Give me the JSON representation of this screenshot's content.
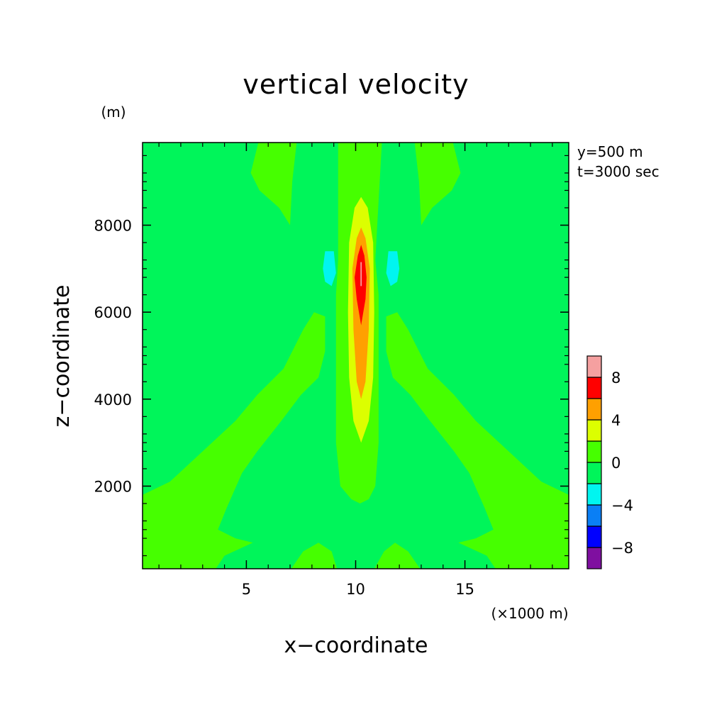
{
  "chart_data": {
    "type": "heatmap",
    "title": "vertical velocity",
    "xlabel": "x−coordinate",
    "ylabel": "z−coordinate",
    "x_unit": "(×1000 m)",
    "y_unit": "(m)",
    "annotations": [
      "y=500 m",
      "t=3000 sec"
    ],
    "xlim": [
      0.25,
      19.75
    ],
    "ylim": [
      100,
      9900
    ],
    "x_ticks": [
      5,
      10,
      15
    ],
    "x_tick_labels": [
      "5",
      "10",
      "15"
    ],
    "y_ticks": [
      2000,
      4000,
      6000,
      8000
    ],
    "y_tick_labels": [
      "2000",
      "4000",
      "6000",
      "8000"
    ],
    "colorbar": {
      "levels": [
        -10,
        -8,
        -6,
        -4,
        -2,
        0,
        2,
        4,
        6,
        8,
        10
      ],
      "tick_values": [
        -8,
        -4,
        0,
        4,
        8
      ],
      "tick_labels": [
        "−8",
        "−4",
        "0",
        "4",
        "8"
      ],
      "colors": [
        "#7f0fa0",
        "#0000ff",
        "#0a7ff5",
        "#00f5f0",
        "#00f55a",
        "#46ff00",
        "#dcff00",
        "#ffa000",
        "#ff0000",
        "#f5a0a0"
      ]
    },
    "background_color": "#00f55a",
    "regions": [
      {
        "value_range": [
          0,
          2
        ],
        "color": "#46ff00",
        "points": [
          [
            0.25,
            1800
          ],
          [
            1.5,
            2100
          ],
          [
            3,
            2800
          ],
          [
            4.5,
            3500
          ],
          [
            5.5,
            4100
          ],
          [
            6.7,
            4700
          ],
          [
            7.6,
            5600
          ],
          [
            8.1,
            6000
          ],
          [
            8.6,
            5900
          ],
          [
            8.6,
            5100
          ],
          [
            8.3,
            4500
          ],
          [
            7.5,
            4100
          ],
          [
            6.6,
            3500
          ],
          [
            5.5,
            2800
          ],
          [
            4.8,
            2300
          ],
          [
            4.1,
            1500
          ],
          [
            3.7,
            1000
          ],
          [
            4.5,
            800
          ],
          [
            5.3,
            700
          ],
          [
            4,
            400
          ],
          [
            3.6,
            100
          ],
          [
            0.25,
            100
          ]
        ]
      },
      {
        "value_range": [
          0,
          2
        ],
        "color": "#46ff00",
        "points": [
          [
            19.75,
            1800
          ],
          [
            18.5,
            2100
          ],
          [
            17,
            2800
          ],
          [
            15.5,
            3500
          ],
          [
            14.5,
            4100
          ],
          [
            13.3,
            4700
          ],
          [
            12.4,
            5600
          ],
          [
            11.9,
            6000
          ],
          [
            11.4,
            5900
          ],
          [
            11.4,
            5100
          ],
          [
            11.7,
            4500
          ],
          [
            12.5,
            4100
          ],
          [
            13.4,
            3500
          ],
          [
            14.5,
            2800
          ],
          [
            15.2,
            2300
          ],
          [
            15.9,
            1500
          ],
          [
            16.3,
            1000
          ],
          [
            15.5,
            800
          ],
          [
            14.7,
            700
          ],
          [
            16,
            400
          ],
          [
            16.4,
            100
          ],
          [
            19.75,
            100
          ]
        ]
      },
      {
        "value_range": [
          0,
          2
        ],
        "color": "#46ff00",
        "points": [
          [
            7.05,
            100
          ],
          [
            7.6,
            500
          ],
          [
            8.3,
            700
          ],
          [
            8.9,
            500
          ],
          [
            9.15,
            100
          ]
        ]
      },
      {
        "value_range": [
          0,
          2
        ],
        "color": "#46ff00",
        "points": [
          [
            10.85,
            100
          ],
          [
            11.3,
            500
          ],
          [
            11.8,
            700
          ],
          [
            12.4,
            500
          ],
          [
            12.95,
            100
          ]
        ]
      },
      {
        "value_range": [
          0,
          2
        ],
        "color": "#46ff00",
        "points": [
          [
            5.55,
            9900
          ],
          [
            5.2,
            9200
          ],
          [
            5.6,
            8800
          ],
          [
            6.5,
            8400
          ],
          [
            7,
            8000
          ],
          [
            7.1,
            9000
          ],
          [
            7.3,
            9900
          ]
        ]
      },
      {
        "value_range": [
          0,
          2
        ],
        "color": "#46ff00",
        "points": [
          [
            14.45,
            9900
          ],
          [
            14.8,
            9200
          ],
          [
            14.4,
            8800
          ],
          [
            13.5,
            8400
          ],
          [
            13,
            8000
          ],
          [
            12.9,
            9000
          ],
          [
            12.7,
            9900
          ]
        ]
      },
      {
        "value_range": [
          0,
          2
        ],
        "color": "#46ff00",
        "points": [
          [
            9.2,
            9900
          ],
          [
            9.2,
            7200
          ],
          [
            9.1,
            6400
          ],
          [
            9.1,
            3000
          ],
          [
            9.3,
            2000
          ],
          [
            9.8,
            1700
          ],
          [
            10.2,
            1600
          ],
          [
            10.6,
            1700
          ],
          [
            10.9,
            2000
          ],
          [
            11.05,
            3000
          ],
          [
            11.05,
            6400
          ],
          [
            10.9,
            7200
          ],
          [
            11.2,
            9900
          ]
        ]
      },
      {
        "value_range": [
          2,
          4
        ],
        "color": "#dcff00",
        "points": [
          [
            10.25,
            8650
          ],
          [
            10.55,
            8400
          ],
          [
            10.8,
            7600
          ],
          [
            10.85,
            6000
          ],
          [
            10.8,
            4500
          ],
          [
            10.6,
            3500
          ],
          [
            10.25,
            3000
          ],
          [
            9.9,
            3500
          ],
          [
            9.7,
            4500
          ],
          [
            9.65,
            6000
          ],
          [
            9.7,
            7600
          ],
          [
            9.95,
            8400
          ]
        ]
      },
      {
        "value_range": [
          4,
          6
        ],
        "color": "#ffa000",
        "points": [
          [
            10.25,
            7950
          ],
          [
            10.45,
            7700
          ],
          [
            10.65,
            7000
          ],
          [
            10.6,
            5600
          ],
          [
            10.45,
            4400
          ],
          [
            10.25,
            4000
          ],
          [
            10.05,
            4400
          ],
          [
            9.9,
            5600
          ],
          [
            9.85,
            7000
          ],
          [
            10.05,
            7700
          ]
        ]
      },
      {
        "value_range": [
          6,
          8
        ],
        "color": "#ff0000",
        "points": [
          [
            10.25,
            7550
          ],
          [
            10.4,
            7300
          ],
          [
            10.5,
            6800
          ],
          [
            10.45,
            6300
          ],
          [
            10.25,
            5700
          ],
          [
            10.05,
            6300
          ],
          [
            9.95,
            6800
          ],
          [
            10.1,
            7300
          ]
        ]
      },
      {
        "value_range": [
          8,
          10
        ],
        "color": "#f5a0a0",
        "points": [
          [
            10.22,
            7150
          ],
          [
            10.28,
            7150
          ],
          [
            10.28,
            6600
          ],
          [
            10.22,
            6600
          ]
        ]
      },
      {
        "value_range": [
          -4,
          -2
        ],
        "color": "#00f5f0",
        "points": [
          [
            8.6,
            7400
          ],
          [
            9.0,
            7400
          ],
          [
            9.1,
            6900
          ],
          [
            8.9,
            6600
          ],
          [
            8.6,
            6700
          ],
          [
            8.5,
            7000
          ]
        ]
      },
      {
        "value_range": [
          -4,
          -2
        ],
        "color": "#00f5f0",
        "points": [
          [
            11.5,
            7400
          ],
          [
            11.9,
            7400
          ],
          [
            12.0,
            7000
          ],
          [
            11.9,
            6700
          ],
          [
            11.6,
            6600
          ],
          [
            11.4,
            6900
          ]
        ]
      }
    ]
  }
}
